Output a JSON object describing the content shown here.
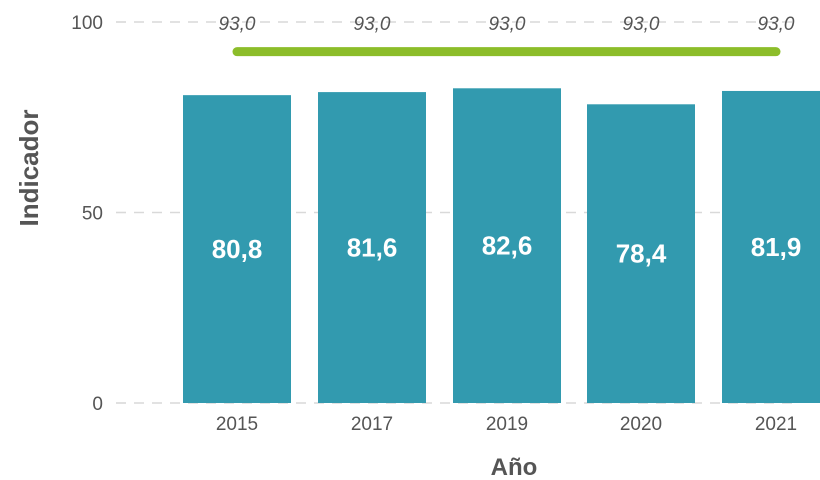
{
  "chart_data": {
    "type": "bar",
    "categories": [
      "2015",
      "2017",
      "2019",
      "2020",
      "2021"
    ],
    "values": [
      80.8,
      81.6,
      82.6,
      78.4,
      81.9
    ],
    "value_labels": [
      "80,8",
      "81,6",
      "82,6",
      "78,4",
      "81,9"
    ],
    "target": {
      "values": [
        93.0,
        93.0,
        93.0,
        93.0,
        93.0
      ],
      "labels": [
        "93,0",
        "93,0",
        "93,0",
        "93,0",
        "93,0"
      ],
      "color": "#8cbd2a"
    },
    "xlabel": "Año",
    "ylabel": "Indicador",
    "ylim": [
      0,
      100
    ],
    "yticks": [
      0,
      50,
      100
    ],
    "grid": true,
    "colors": {
      "bar": "#329aaf",
      "grid": "#d9d9d9",
      "text": "#555555"
    }
  }
}
